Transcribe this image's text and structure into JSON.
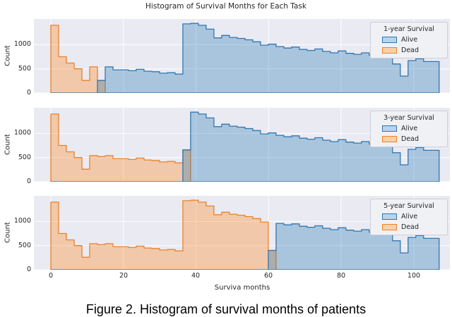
{
  "figure": {
    "suptitle": "Histogram of Survival Months for Each Task",
    "xlabel": "Surviva months",
    "ylabel": "Count",
    "caption": "Figure 2. Histogram of survival months of patients"
  },
  "chart_data": {
    "type": "bar",
    "variant": "step-histogram-grid",
    "title": "Histogram of Survival Months for Each Task",
    "xlabel": "Surviva months",
    "ylabel": "Count",
    "grid": true,
    "legend_position": "upper right",
    "x_ticks": [
      0,
      20,
      40,
      60,
      80,
      100
    ],
    "y_ticks": [
      0,
      500,
      1000
    ],
    "xlim": [
      -4.7,
      110
    ],
    "ylim": [
      0,
      1530
    ],
    "bin_start": 0,
    "bin_width": 2.14,
    "colors": {
      "axes_background": "#eaeaf2",
      "grid": "#ffffff",
      "alive_edge": "#3176ae",
      "alive_fill": "rgba(31,119,180,0.32)",
      "alive_patch": "#b9d3e8",
      "dead_edge": "#e8832c",
      "dead_fill": "rgba(255,127,14,0.32)",
      "dead_patch": "#f8d1aa",
      "overlap_rendered": "#ababab",
      "text": "#262626"
    },
    "subplots": [
      {
        "legend_title": "1-year Survival",
        "series": [
          {
            "name": "Alive",
            "edge_color": "#3176ae",
            "fill_color": "rgba(31,119,180,0.32)",
            "values": [
              0,
              0,
              0,
              0,
              0,
              0,
              260,
              540,
              480,
              480,
              460,
              490,
              450,
              440,
              410,
              420,
              390,
              1430,
              1440,
              1400,
              1320,
              1140,
              1190,
              1150,
              1130,
              1100,
              1060,
              990,
              1010,
              960,
              930,
              950,
              900,
              880,
              910,
              860,
              830,
              870,
              820,
              800,
              830,
              780,
              760,
              790,
              600,
              350,
              670,
              710,
              650,
              650
            ]
          },
          {
            "name": "Dead",
            "edge_color": "#e8832c",
            "fill_color": "rgba(255,127,14,0.32)",
            "values": [
              1400,
              750,
              620,
              500,
              260,
              540,
              260,
              0,
              0,
              0,
              0,
              0,
              0,
              0,
              0,
              0,
              0,
              0,
              0,
              0,
              0,
              0,
              0,
              0,
              0,
              0,
              0,
              0,
              0,
              0,
              0,
              0,
              0,
              0,
              0,
              0,
              0,
              0,
              0,
              0,
              0,
              0,
              0,
              0,
              0,
              0,
              0,
              0,
              0,
              0
            ]
          }
        ]
      },
      {
        "legend_title": "3-year Survival",
        "series": [
          {
            "name": "Alive",
            "edge_color": "#3176ae",
            "fill_color": "rgba(31,119,180,0.32)",
            "values": [
              0,
              0,
              0,
              0,
              0,
              0,
              0,
              0,
              0,
              0,
              0,
              0,
              0,
              0,
              0,
              0,
              0,
              660,
              1440,
              1400,
              1320,
              1140,
              1190,
              1150,
              1130,
              1100,
              1060,
              990,
              1010,
              960,
              930,
              950,
              900,
              880,
              910,
              860,
              830,
              870,
              820,
              800,
              830,
              780,
              760,
              790,
              600,
              350,
              670,
              710,
              650,
              650
            ]
          },
          {
            "name": "Dead",
            "edge_color": "#e8832c",
            "fill_color": "rgba(255,127,14,0.32)",
            "values": [
              1400,
              750,
              620,
              500,
              260,
              540,
              520,
              540,
              480,
              480,
              460,
              490,
              450,
              440,
              410,
              420,
              390,
              660,
              0,
              0,
              0,
              0,
              0,
              0,
              0,
              0,
              0,
              0,
              0,
              0,
              0,
              0,
              0,
              0,
              0,
              0,
              0,
              0,
              0,
              0,
              0,
              0,
              0,
              0,
              0,
              0,
              0,
              0,
              0,
              0
            ]
          }
        ]
      },
      {
        "legend_title": "5-year Survival",
        "series": [
          {
            "name": "Alive",
            "edge_color": "#3176ae",
            "fill_color": "rgba(31,119,180,0.32)",
            "values": [
              0,
              0,
              0,
              0,
              0,
              0,
              0,
              0,
              0,
              0,
              0,
              0,
              0,
              0,
              0,
              0,
              0,
              0,
              0,
              0,
              0,
              0,
              0,
              0,
              0,
              0,
              0,
              0,
              400,
              960,
              930,
              950,
              900,
              880,
              910,
              860,
              830,
              870,
              820,
              800,
              830,
              780,
              760,
              790,
              600,
              350,
              670,
              710,
              650,
              650
            ]
          },
          {
            "name": "Dead",
            "edge_color": "#e8832c",
            "fill_color": "rgba(255,127,14,0.32)",
            "values": [
              1400,
              750,
              620,
              500,
              260,
              540,
              520,
              540,
              480,
              480,
              460,
              490,
              450,
              440,
              410,
              420,
              390,
              1430,
              1440,
              1400,
              1320,
              1140,
              1190,
              1150,
              1130,
              1100,
              1060,
              990,
              400,
              0,
              0,
              0,
              0,
              0,
              0,
              0,
              0,
              0,
              0,
              0,
              0,
              0,
              0,
              0,
              0,
              0,
              0,
              0,
              0,
              0
            ]
          }
        ]
      }
    ]
  }
}
